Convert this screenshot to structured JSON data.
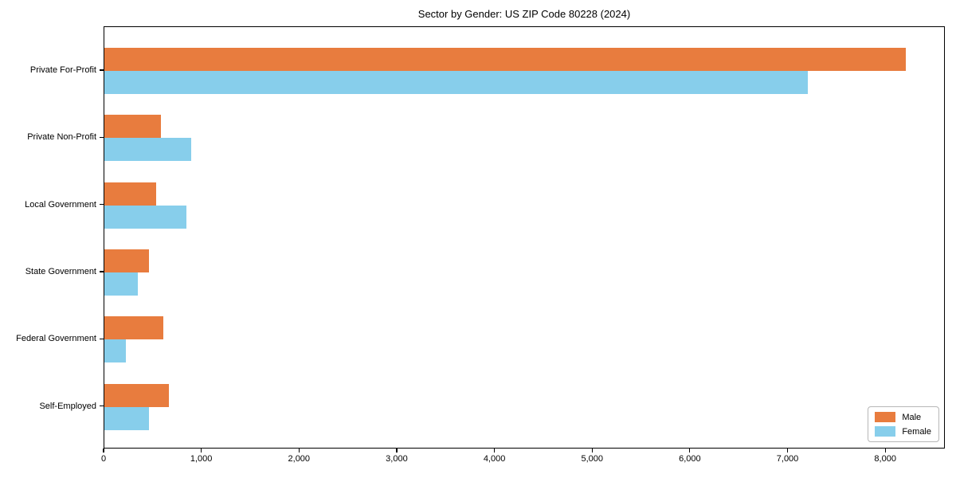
{
  "chart_data": {
    "type": "bar",
    "orientation": "horizontal",
    "title": "Sector by Gender: US ZIP Code 80228 (2024)",
    "categories": [
      "Private For-Profit",
      "Private Non-Profit",
      "Local Government",
      "State Government",
      "Federal Government",
      "Self-Employed"
    ],
    "series": [
      {
        "name": "Male",
        "color": "#e87c3e",
        "values": [
          8200,
          580,
          530,
          460,
          600,
          660
        ]
      },
      {
        "name": "Female",
        "color": "#87ceeb",
        "values": [
          7200,
          890,
          840,
          340,
          220,
          460
        ]
      }
    ],
    "xlabel": "",
    "ylabel": "",
    "xlim": [
      0,
      8610
    ],
    "x_ticks": [
      0,
      1000,
      2000,
      3000,
      4000,
      5000,
      6000,
      7000,
      8000
    ],
    "x_tick_labels": [
      "0",
      "1,000",
      "2,000",
      "3,000",
      "4,000",
      "5,000",
      "6,000",
      "7,000",
      "8,000"
    ],
    "grid": false,
    "legend": {
      "position": "lower right",
      "items": [
        "Male",
        "Female"
      ]
    },
    "colors": {
      "male": "#e87c3e",
      "female": "#87ceeb",
      "text": "#000000",
      "spine": "#000000",
      "background": "#ffffff"
    }
  }
}
